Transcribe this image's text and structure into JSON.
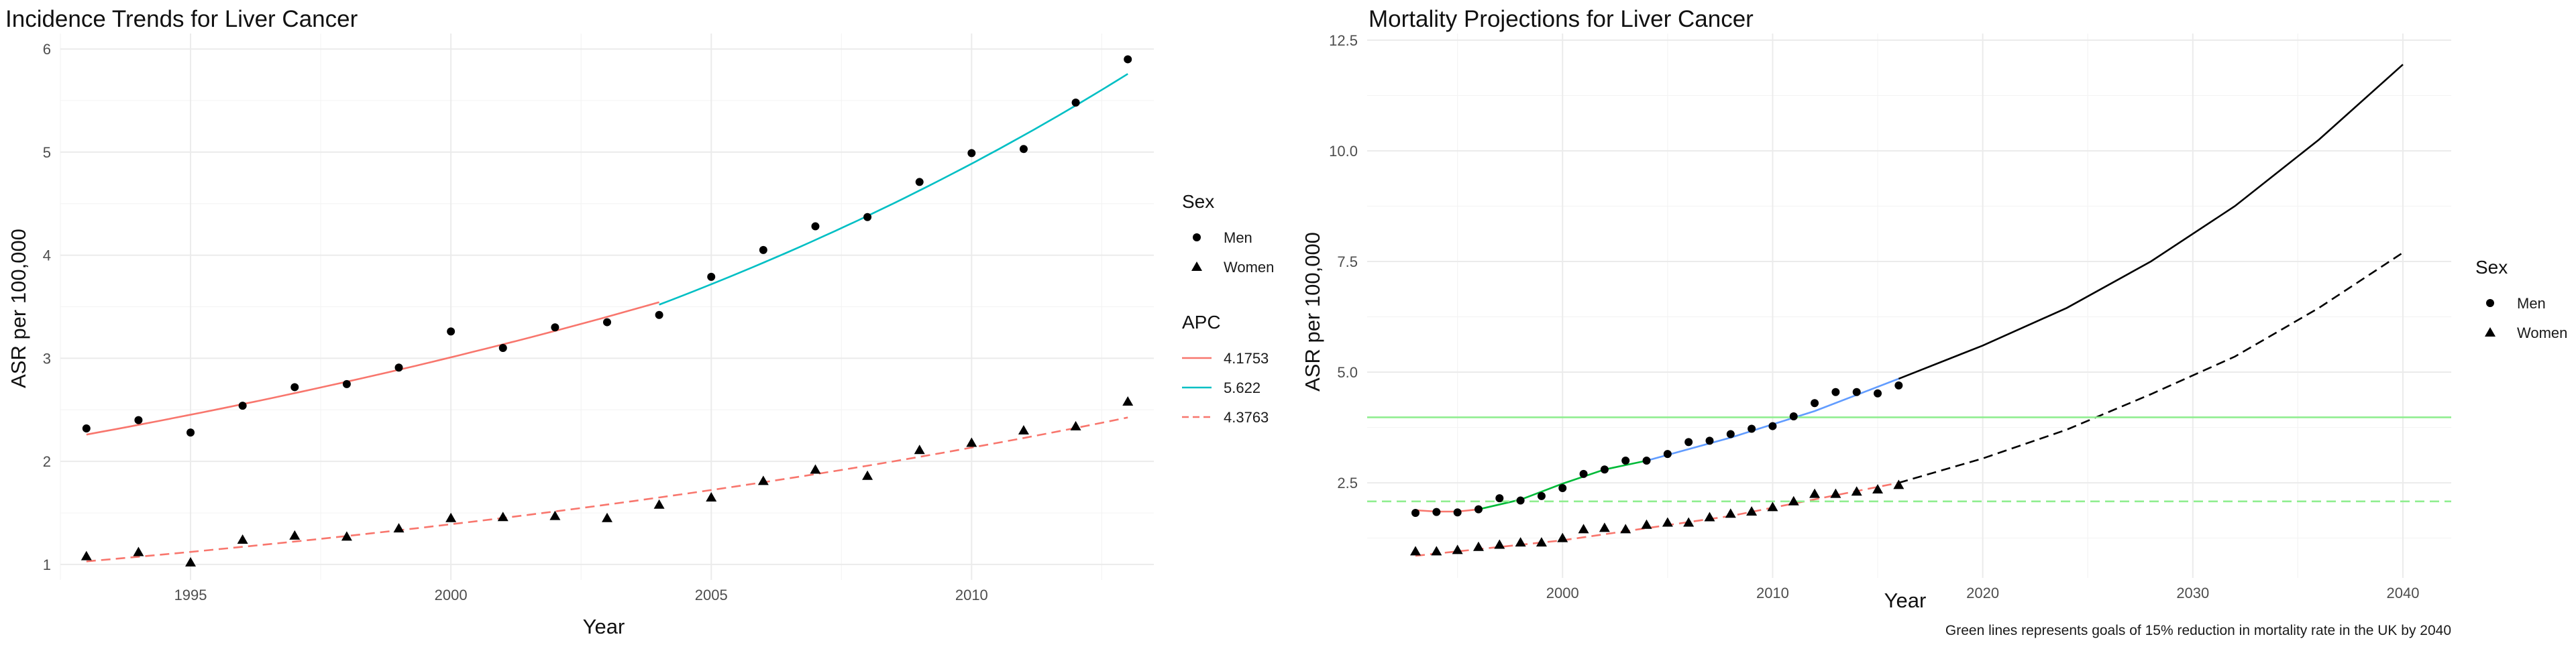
{
  "chart_data": [
    {
      "type": "line",
      "title": "Incidence Trends for Liver Cancer",
      "xlabel": "Year",
      "ylabel": "ASR per 100,000",
      "xlim": [
        1992.5,
        2013.5
      ],
      "ylim": [
        0.85,
        6.15
      ],
      "x_ticks": [
        1995,
        2000,
        2005,
        2010
      ],
      "y_ticks": [
        1,
        2,
        3,
        4,
        5,
        6
      ],
      "grid": true,
      "legend_placement": "right",
      "points": [
        {
          "name": "Men",
          "shape": "circle",
          "x": [
            1993,
            1994,
            1995,
            1996,
            1997,
            1998,
            1999,
            2000,
            2001,
            2002,
            2003,
            2004,
            2005,
            2006,
            2007,
            2008,
            2009,
            2010,
            2011,
            2012,
            2013
          ],
          "y": [
            2.32,
            2.4,
            2.28,
            2.54,
            2.72,
            2.75,
            2.91,
            3.26,
            3.1,
            3.3,
            3.35,
            3.42,
            3.79,
            4.05,
            4.28,
            4.37,
            4.71,
            4.99,
            5.03,
            5.48,
            5.9
          ]
        },
        {
          "name": "Women",
          "shape": "triangle",
          "x": [
            1993,
            1994,
            1995,
            1996,
            1997,
            1998,
            1999,
            2000,
            2001,
            2002,
            2003,
            2004,
            2005,
            2006,
            2007,
            2008,
            2009,
            2010,
            2011,
            2012,
            2013
          ],
          "y": [
            1.08,
            1.12,
            1.02,
            1.24,
            1.28,
            1.27,
            1.35,
            1.45,
            1.46,
            1.47,
            1.45,
            1.58,
            1.65,
            1.81,
            1.92,
            1.86,
            2.11,
            2.18,
            2.3,
            2.34,
            2.58
          ]
        }
      ],
      "lines": [
        {
          "name": "4.1753",
          "color": "#F8766D",
          "dash": "solid",
          "x0": 1993,
          "y0": 2.26,
          "x1": 2004,
          "rate": 4.1753
        },
        {
          "name": "5.622",
          "color": "#00BFC4",
          "dash": "solid",
          "x0": 2004,
          "y0": 3.52,
          "x1": 2013,
          "rate": 5.622
        },
        {
          "name": "4.3763",
          "color": "#F8766D",
          "dash": "dashed",
          "x0": 1993,
          "y0": 1.03,
          "x1": 2013,
          "rate": 4.3763
        }
      ],
      "legends": [
        {
          "title": "Sex",
          "entries": [
            {
              "label": "Men",
              "kind": "circle"
            },
            {
              "label": "Women",
              "kind": "triangle"
            }
          ]
        },
        {
          "title": "APC",
          "entries": [
            {
              "label": "4.1753",
              "kind": "line",
              "color": "#F8766D",
              "dash": "solid"
            },
            {
              "label": "5.622",
              "kind": "line",
              "color": "#00BFC4",
              "dash": "solid"
            },
            {
              "label": "4.3763",
              "kind": "line",
              "color": "#F8766D",
              "dash": "dashed"
            }
          ]
        }
      ]
    },
    {
      "type": "line",
      "title": "Mortality Projections for Liver Cancer",
      "xlabel": "Year",
      "ylabel": "ASR per 100,000",
      "xlim": [
        1990.7,
        2042.3
      ],
      "ylim": [
        0.35,
        12.65
      ],
      "x_ticks": [
        2000,
        2010,
        2020,
        2030,
        2040
      ],
      "y_ticks": [
        2.5,
        5.0,
        7.5,
        10.0,
        12.5
      ],
      "y_tick_labels": [
        "2.5",
        "5.0",
        "7.5",
        "10.0",
        "12.5"
      ],
      "grid": true,
      "legend_placement": "right",
      "points": [
        {
          "name": "Men",
          "shape": "circle",
          "x": [
            1993,
            1994,
            1995,
            1996,
            1997,
            1998,
            1999,
            2000,
            2001,
            2002,
            2003,
            2004,
            2005,
            2006,
            2007,
            2008,
            2009,
            2010,
            2011,
            2012,
            2013,
            2014,
            2015,
            2016
          ],
          "y": [
            1.82,
            1.84,
            1.83,
            1.9,
            2.15,
            2.1,
            2.2,
            2.38,
            2.7,
            2.8,
            3.0,
            3.0,
            3.15,
            3.42,
            3.45,
            3.6,
            3.72,
            3.78,
            4.0,
            4.3,
            4.55,
            4.55,
            4.52,
            4.7
          ]
        },
        {
          "name": "Women",
          "shape": "triangle",
          "x": [
            1993,
            1994,
            1995,
            1996,
            1997,
            1998,
            1999,
            2000,
            2001,
            2002,
            2003,
            2004,
            2005,
            2006,
            2007,
            2008,
            2009,
            2010,
            2011,
            2012,
            2013,
            2014,
            2015,
            2016
          ],
          "y": [
            0.95,
            0.95,
            0.98,
            1.05,
            1.1,
            1.15,
            1.15,
            1.25,
            1.45,
            1.48,
            1.45,
            1.55,
            1.6,
            1.6,
            1.72,
            1.8,
            1.85,
            1.95,
            2.08,
            2.25,
            2.25,
            2.3,
            2.35,
            2.45
          ]
        }
      ],
      "lines": [
        {
          "name": "men-seg1",
          "color": "#F8766D",
          "dash": "solid",
          "x": [
            1993,
            1994,
            1995,
            1996
          ],
          "y": [
            1.88,
            1.85,
            1.85,
            1.9
          ]
        },
        {
          "name": "men-seg2",
          "color": "#00BA38",
          "dash": "solid",
          "x": [
            1996,
            1998,
            2000,
            2002,
            2004
          ],
          "y": [
            1.9,
            2.12,
            2.48,
            2.8,
            3.0
          ]
        },
        {
          "name": "men-seg3",
          "color": "#619CFF",
          "dash": "solid",
          "x": [
            2004,
            2008,
            2012,
            2016
          ],
          "y": [
            3.0,
            3.52,
            4.12,
            4.85
          ]
        },
        {
          "name": "men-proj",
          "color": "#000000",
          "dash": "solid",
          "x": [
            2016,
            2020,
            2024,
            2028,
            2032,
            2036,
            2040
          ],
          "y": [
            4.85,
            5.6,
            6.45,
            7.5,
            8.75,
            10.25,
            11.95
          ]
        },
        {
          "name": "women-fit",
          "color": "#F8766D",
          "dash": "dashed",
          "x": [
            1993,
            2000,
            2008,
            2016
          ],
          "y": [
            0.85,
            1.2,
            1.75,
            2.5
          ]
        },
        {
          "name": "women-proj",
          "color": "#000000",
          "dash": "dashed",
          "x": [
            2016,
            2020,
            2024,
            2028,
            2032,
            2036,
            2040
          ],
          "y": [
            2.5,
            3.05,
            3.7,
            4.5,
            5.35,
            6.45,
            7.7
          ]
        },
        {
          "name": "goal-men",
          "color": "#90EE90",
          "dash": "solid",
          "x": [
            1990.7,
            2042.3
          ],
          "y": [
            3.98,
            3.98
          ]
        },
        {
          "name": "goal-women",
          "color": "#90EE90",
          "dash": "dashed",
          "x": [
            1990.7,
            2042.3
          ],
          "y": [
            2.08,
            2.08
          ]
        }
      ],
      "legends": [
        {
          "title": "Sex",
          "entries": [
            {
              "label": "Men",
              "kind": "circle"
            },
            {
              "label": "Women",
              "kind": "triangle"
            }
          ]
        }
      ],
      "caption": "Green lines represents goals of 15% reduction in mortality rate in the UK by 2040"
    }
  ]
}
